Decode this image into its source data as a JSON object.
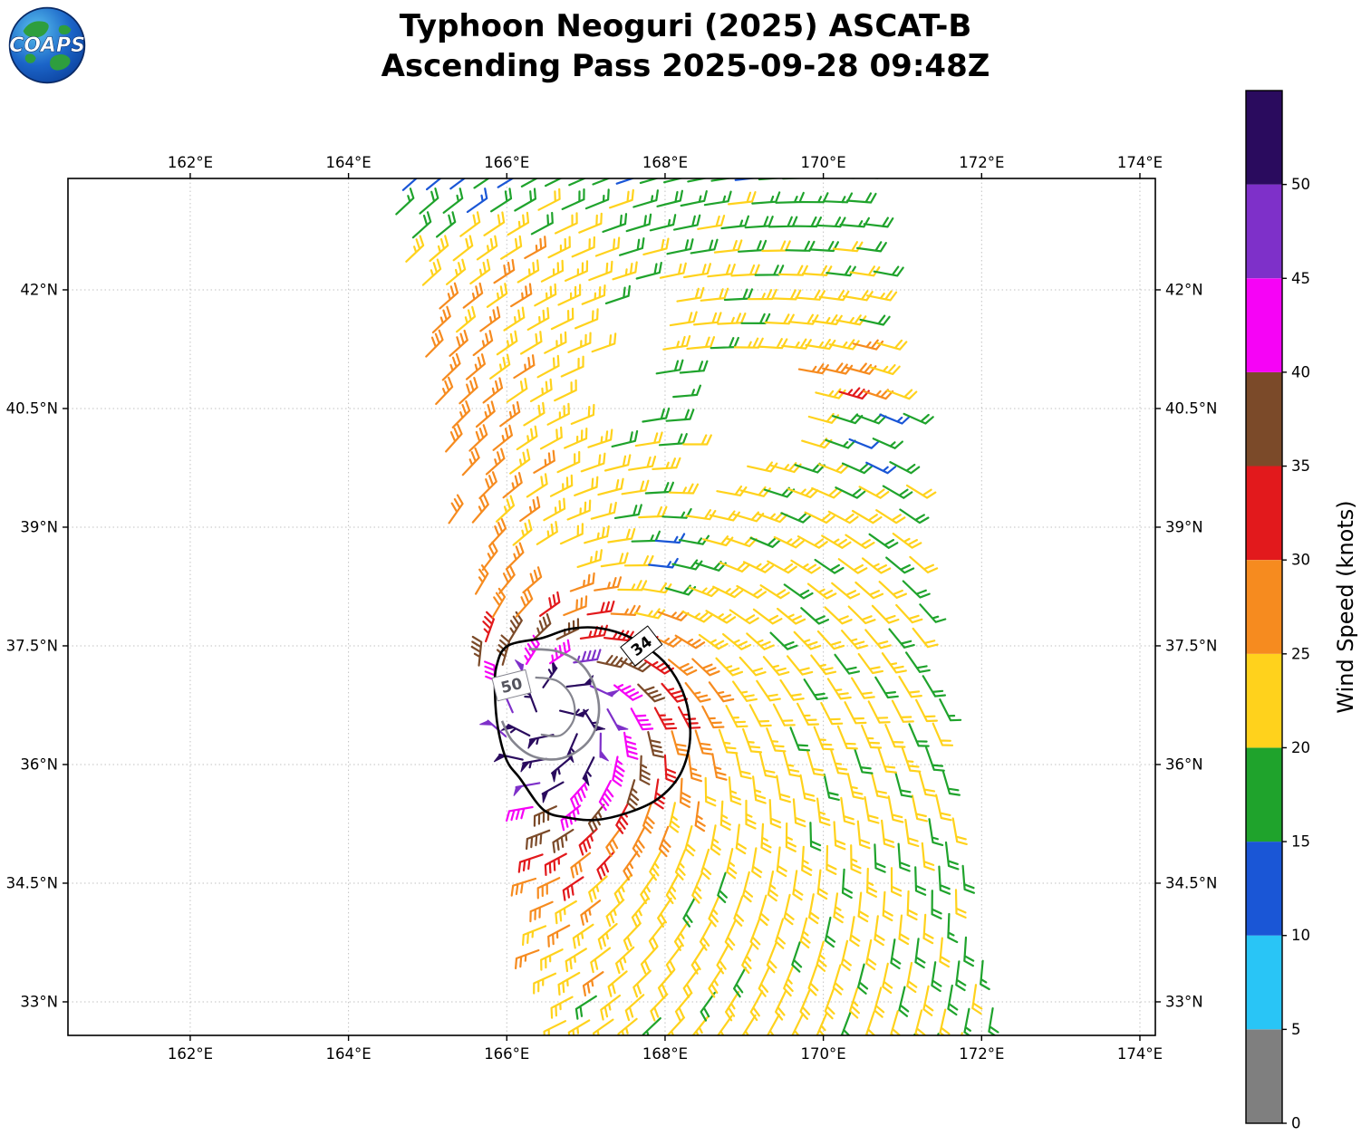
{
  "title": {
    "line1": "Typhoon Neoguri (2025) ASCAT-B",
    "line2": "Ascending Pass 2025-09-28 09:48Z"
  },
  "logo": {
    "text": "COAPS"
  },
  "map": {
    "x_ticks": [
      {
        "lon": 162,
        "label": "162°E"
      },
      {
        "lon": 164,
        "label": "164°E"
      },
      {
        "lon": 166,
        "label": "166°E"
      },
      {
        "lon": 168,
        "label": "168°E"
      },
      {
        "lon": 170,
        "label": "170°E"
      },
      {
        "lon": 172,
        "label": "172°E"
      },
      {
        "lon": 174,
        "label": "174°E"
      }
    ],
    "y_ticks": [
      {
        "lat": 33,
        "label": "33°N"
      },
      {
        "lat": 34.5,
        "label": "34.5°N"
      },
      {
        "lat": 36,
        "label": "36°N"
      },
      {
        "lat": 37.5,
        "label": "37.5°N"
      },
      {
        "lat": 39,
        "label": "39°N"
      },
      {
        "lat": 40.5,
        "label": "40.5°N"
      },
      {
        "lat": 42,
        "label": "42°N"
      }
    ]
  },
  "colorbar": {
    "label": "Wind Speed (knots)",
    "ticks": [
      0,
      5,
      10,
      15,
      20,
      25,
      30,
      35,
      40,
      45,
      50
    ],
    "bins": [
      {
        "min": 0,
        "max": 5,
        "color": "#7f7f7f"
      },
      {
        "min": 5,
        "max": 10,
        "color": "#29c5f6"
      },
      {
        "min": 10,
        "max": 15,
        "color": "#1a56d6"
      },
      {
        "min": 15,
        "max": 20,
        "color": "#1fa32c"
      },
      {
        "min": 20,
        "max": 25,
        "color": "#ffd21c"
      },
      {
        "min": 25,
        "max": 30,
        "color": "#f68b1f"
      },
      {
        "min": 30,
        "max": 35,
        "color": "#e2191c"
      },
      {
        "min": 35,
        "max": 40,
        "color": "#7b4a29"
      },
      {
        "min": 40,
        "max": 45,
        "color": "#f603f6"
      },
      {
        "min": 45,
        "max": 50,
        "color": "#7e30c9"
      },
      {
        "min": 50,
        "max": 55,
        "color": "#2a0b5e"
      }
    ]
  },
  "chart_data": {
    "type": "wind_barb_map",
    "satellite": "ASCAT-B",
    "pass": "ascending",
    "valid_time": "2025-09-28 09:48Z",
    "units": "knots",
    "extent": {
      "lon_min": 160.455,
      "lon_max": 174.195,
      "lat_min": 32.576,
      "lat_max": 43.408
    },
    "storm": {
      "name": "Neoguri",
      "year": 2025,
      "center_lon": 166.65,
      "center_lat": 36.65,
      "max_wind_kt": 55
    },
    "swath": {
      "lat0": 32.8,
      "left_lon": 166.5,
      "left_slope": -0.2095,
      "right_lon": 172.2,
      "right_slope": -0.152,
      "lat_min": 32.45,
      "lat_max": 43.45,
      "row_step": 0.3,
      "col_step": 0.3,
      "row_tilt": 0.03
    },
    "field": {
      "base": 21.5,
      "noise_amp": 1.6,
      "west_band": {
        "amp": 6.5,
        "offset": 0.35,
        "width": 0.75,
        "lat_center": 40.3,
        "lat_width": 2.4
      },
      "top_cool": {
        "amp": -5,
        "lat": 43.6,
        "width": 1.1
      },
      "east_cool": {
        "start_lon": 170.4,
        "rate": 1.8
      },
      "south_tail": {
        "amp": 8,
        "dx_width": 0.75,
        "dy_width": 2.8,
        "ramp": 0.4
      },
      "patches": [
        {
          "lon": 170.45,
          "lat": 40.2,
          "amp": -9.5,
          "r": 0.5
        },
        {
          "lon": 167.9,
          "lat": 38.7,
          "amp": -9.0,
          "r": 0.45
        },
        {
          "lon": 168.35,
          "lat": 40.45,
          "amp": -8.0,
          "r": 0.4
        },
        {
          "lon": 165.2,
          "lat": 43.35,
          "amp": -7.0,
          "r": 0.6
        },
        {
          "lon": 166.2,
          "lat": 42.2,
          "amp": 4.5,
          "r": 0.8
        },
        {
          "lon": 169.9,
          "lat": 41.0,
          "amp": 3.5,
          "r": 0.6
        },
        {
          "lon": 170.3,
          "lat": 40.78,
          "amp": 14.0,
          "r": 0.28
        }
      ],
      "vortex": {
        "amp": 38,
        "rscale": 0.95,
        "power": 1.6,
        "ew_compress": 0.8,
        "south_stretch": 1.25,
        "inflow_deg": 25,
        "cap": 55
      }
    },
    "gaps": [
      {
        "lon": 167.35,
        "lat": 40.75,
        "rx": 0.55,
        "ry": 0.5
      },
      {
        "lon": 169.05,
        "lat": 40.6,
        "rx": 0.8,
        "ry": 0.62
      },
      {
        "lon": 167.6,
        "lat": 41.55,
        "rx": 0.45,
        "ry": 0.4
      },
      {
        "lon": 168.45,
        "lat": 39.75,
        "rx": 0.38,
        "ry": 0.33
      },
      {
        "lon": 166.55,
        "lat": 38.45,
        "rx": 0.3,
        "ry": 0.28
      }
    ],
    "contours": [
      {
        "level": 34,
        "closed": true,
        "color": "#000000",
        "width": 2.6,
        "label": "34",
        "label_color": "#000000",
        "label_lon": 167.7,
        "label_lat": 37.5,
        "label_rotation": -38,
        "points": [
          [
            166.45,
            37.6
          ],
          [
            166.78,
            37.71
          ],
          [
            167.12,
            37.73
          ],
          [
            167.46,
            37.65
          ],
          [
            167.76,
            37.49
          ],
          [
            168.03,
            37.25
          ],
          [
            168.22,
            36.93
          ],
          [
            168.31,
            36.57
          ],
          [
            168.3,
            36.2
          ],
          [
            168.17,
            35.84
          ],
          [
            167.9,
            35.56
          ],
          [
            167.53,
            35.39
          ],
          [
            167.13,
            35.3
          ],
          [
            166.76,
            35.33
          ],
          [
            166.46,
            35.43
          ],
          [
            166.17,
            35.82
          ],
          [
            166.0,
            36.05
          ],
          [
            165.89,
            36.45
          ],
          [
            165.85,
            36.9
          ],
          [
            165.87,
            37.24
          ],
          [
            166.01,
            37.5
          ]
        ]
      },
      {
        "level": 50,
        "closed": false,
        "color": "#85858f",
        "width": 2.6,
        "label": "50",
        "label_color": "#55555e",
        "label_lon": 166.06,
        "label_lat": 37.0,
        "label_rotation": -14,
        "points": [
          [
            166.28,
            37.46
          ],
          [
            166.64,
            37.43
          ],
          [
            166.95,
            37.26
          ],
          [
            167.12,
            36.96
          ],
          [
            167.16,
            36.61
          ],
          [
            167.02,
            36.28
          ],
          [
            166.7,
            36.08
          ],
          [
            166.34,
            36.1
          ],
          [
            166.07,
            36.3
          ],
          [
            165.94,
            36.55
          ]
        ]
      },
      {
        "level": 50,
        "closed": false,
        "color": "#85858f",
        "width": 2.2,
        "label": null,
        "label_color": "#55555e",
        "label_lon": 0,
        "label_lat": 0,
        "label_rotation": 0,
        "points": [
          [
            166.36,
            37.1
          ],
          [
            166.63,
            37.06
          ],
          [
            166.82,
            36.86
          ],
          [
            166.85,
            36.58
          ],
          [
            166.68,
            36.37
          ],
          [
            166.43,
            36.38
          ]
        ]
      }
    ]
  }
}
